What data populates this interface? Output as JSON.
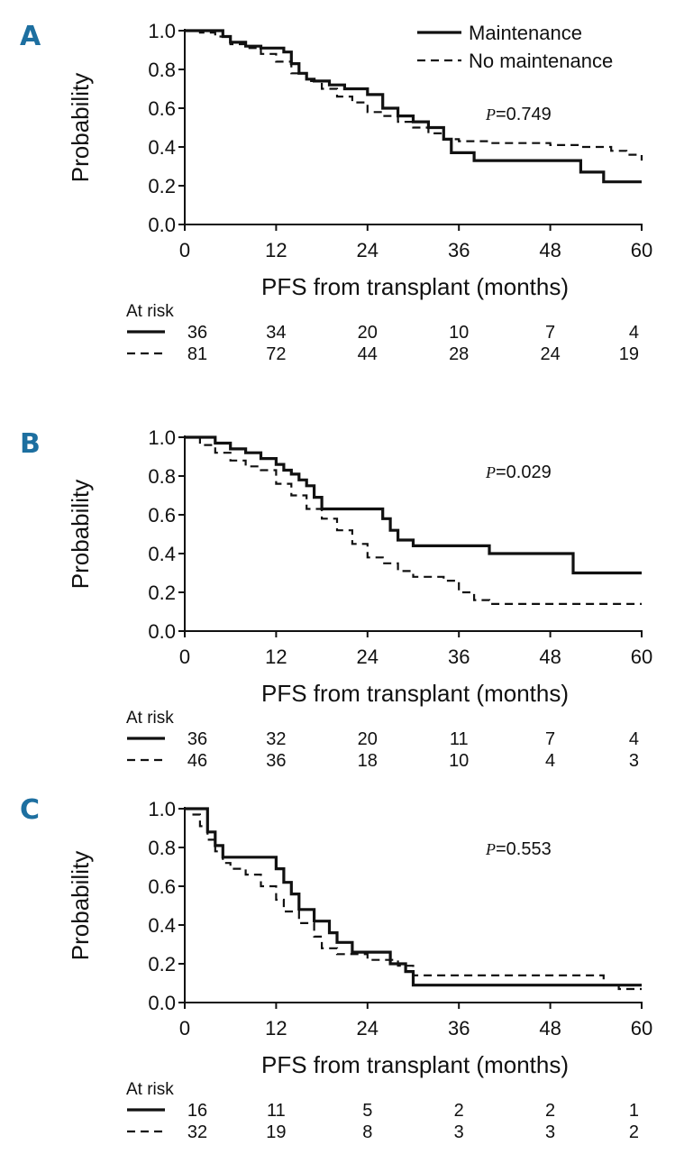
{
  "chart_data": [
    {
      "panel": "A",
      "type": "line",
      "step": true,
      "xlabel": "PFS from transplant (months)",
      "ylabel": "Probability",
      "xlim": [
        0,
        60
      ],
      "ylim": [
        0,
        1.0
      ],
      "xticks": [
        "0",
        "12",
        "24",
        "36",
        "48",
        "60"
      ],
      "yticks": [
        "0.0",
        "0.2",
        "0.4",
        "0.6",
        "0.8",
        "1.0"
      ],
      "legend": {
        "placement": "top-right",
        "entries": [
          "Maintenance",
          "No maintenance"
        ]
      },
      "pvalue": {
        "symbol": "P",
        "text": "=0.749"
      },
      "series": [
        {
          "name": "Maintenance",
          "style": "solid",
          "x": [
            0,
            5,
            6,
            8,
            10,
            13,
            14,
            15,
            16,
            17,
            19,
            21,
            24,
            26,
            28,
            30,
            32,
            34,
            35,
            38,
            52,
            55,
            60
          ],
          "y": [
            1.0,
            0.97,
            0.94,
            0.92,
            0.91,
            0.89,
            0.83,
            0.78,
            0.75,
            0.74,
            0.72,
            0.7,
            0.67,
            0.6,
            0.56,
            0.53,
            0.5,
            0.44,
            0.37,
            0.33,
            0.27,
            0.22,
            0.22
          ]
        },
        {
          "name": "No maintenance",
          "style": "dashed",
          "x": [
            0,
            2,
            4,
            6,
            8,
            10,
            12,
            14,
            16,
            18,
            20,
            22,
            24,
            26,
            28,
            30,
            32,
            34,
            36,
            40,
            48,
            52,
            56,
            58,
            60
          ],
          "y": [
            1.0,
            0.99,
            0.97,
            0.93,
            0.91,
            0.88,
            0.84,
            0.78,
            0.74,
            0.7,
            0.66,
            0.63,
            0.58,
            0.56,
            0.53,
            0.5,
            0.47,
            0.44,
            0.43,
            0.42,
            0.41,
            0.4,
            0.38,
            0.36,
            0.33
          ]
        }
      ],
      "at_risk": {
        "title": "At risk",
        "rows": [
          {
            "style": "solid",
            "values": [
              "36",
              "34",
              "20",
              "10",
              "7",
              "4"
            ]
          },
          {
            "style": "dashed",
            "values": [
              "81",
              "72",
              "44",
              "28",
              "24",
              "19"
            ]
          }
        ]
      }
    },
    {
      "panel": "B",
      "type": "line",
      "step": true,
      "xlabel": "PFS from transplant (months)",
      "ylabel": "Probability",
      "xlim": [
        0,
        60
      ],
      "ylim": [
        0,
        1.0
      ],
      "xticks": [
        "0",
        "12",
        "24",
        "36",
        "48",
        "60"
      ],
      "yticks": [
        "0.0",
        "0.2",
        "0.4",
        "0.6",
        "0.8",
        "1.0"
      ],
      "pvalue": {
        "symbol": "P",
        "text": "=0.029"
      },
      "series": [
        {
          "name": "Maintenance",
          "style": "solid",
          "x": [
            0,
            4,
            6,
            8,
            10,
            12,
            13,
            14,
            15,
            16,
            17,
            18,
            26,
            27,
            28,
            30,
            34,
            40,
            51,
            60
          ],
          "y": [
            1.0,
            0.97,
            0.94,
            0.92,
            0.89,
            0.86,
            0.83,
            0.81,
            0.78,
            0.75,
            0.69,
            0.63,
            0.58,
            0.52,
            0.47,
            0.44,
            0.44,
            0.4,
            0.3,
            0.3
          ]
        },
        {
          "name": "No maintenance",
          "style": "dashed",
          "x": [
            0,
            2,
            4,
            6,
            8,
            10,
            12,
            14,
            16,
            18,
            20,
            22,
            24,
            26,
            28,
            30,
            34,
            36,
            38,
            40,
            60
          ],
          "y": [
            1.0,
            0.96,
            0.92,
            0.88,
            0.85,
            0.83,
            0.76,
            0.7,
            0.63,
            0.58,
            0.52,
            0.45,
            0.38,
            0.35,
            0.31,
            0.28,
            0.26,
            0.2,
            0.16,
            0.14,
            0.14
          ]
        }
      ],
      "at_risk": {
        "title": "At risk",
        "rows": [
          {
            "style": "solid",
            "values": [
              "36",
              "32",
              "20",
              "11",
              "7",
              "4"
            ]
          },
          {
            "style": "dashed",
            "values": [
              "46",
              "36",
              "18",
              "10",
              "4",
              "3"
            ]
          }
        ]
      }
    },
    {
      "panel": "C",
      "type": "line",
      "step": true,
      "xlabel": "PFS from transplant (months)",
      "ylabel": "Probability",
      "xlim": [
        0,
        60
      ],
      "ylim": [
        0,
        1.0
      ],
      "xticks": [
        "0",
        "12",
        "24",
        "36",
        "48",
        "60"
      ],
      "yticks": [
        "0.0",
        "0.2",
        "0.4",
        "0.6",
        "0.8",
        "1.0"
      ],
      "pvalue": {
        "symbol": "P",
        "text": "=0.553"
      },
      "series": [
        {
          "name": "Maintenance",
          "style": "solid",
          "x": [
            0,
            3,
            4,
            5,
            12,
            13,
            14,
            15,
            17,
            19,
            20,
            22,
            27,
            29,
            30,
            60
          ],
          "y": [
            1.0,
            0.88,
            0.81,
            0.75,
            0.69,
            0.62,
            0.56,
            0.48,
            0.42,
            0.36,
            0.31,
            0.26,
            0.2,
            0.16,
            0.09,
            0.09
          ]
        },
        {
          "name": "No maintenance",
          "style": "dashed",
          "x": [
            0,
            1,
            2,
            3,
            4,
            5,
            6,
            8,
            10,
            12,
            13,
            15,
            17,
            18,
            20,
            24,
            28,
            30,
            55,
            57,
            60
          ],
          "y": [
            1.0,
            0.97,
            0.91,
            0.84,
            0.78,
            0.72,
            0.69,
            0.66,
            0.6,
            0.53,
            0.47,
            0.41,
            0.34,
            0.28,
            0.25,
            0.22,
            0.19,
            0.14,
            0.09,
            0.07,
            0.07
          ]
        }
      ],
      "at_risk": {
        "title": "At risk",
        "rows": [
          {
            "style": "solid",
            "values": [
              "16",
              "11",
              "5",
              "2",
              "2",
              "1"
            ]
          },
          {
            "style": "dashed",
            "values": [
              "32",
              "19",
              "8",
              "3",
              "3",
              "2"
            ]
          }
        ]
      }
    }
  ]
}
